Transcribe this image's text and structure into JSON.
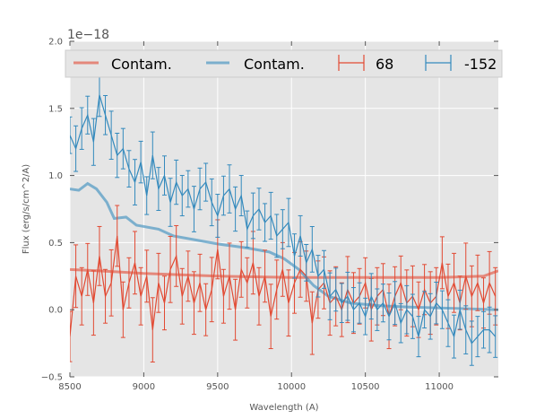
{
  "chart_data": {
    "type": "line",
    "xlabel": "Wavelength (A)",
    "ylabel": "Flux (erg/s/cm^2/A)",
    "offset_text": "1e−18",
    "xlim": [
      8500,
      11400
    ],
    "ylim": [
      -0.5,
      2.0
    ],
    "xticks": [
      8500,
      9000,
      9500,
      10000,
      10500,
      11000
    ],
    "xtick_labels": [
      "8500",
      "9000",
      "9500",
      "10000",
      "10500",
      "11000"
    ],
    "yticks": [
      -0.5,
      0.0,
      0.5,
      1.0,
      1.5,
      2.0
    ],
    "ytick_labels": [
      "−0.5",
      "0.0",
      "0.5",
      "1.0",
      "1.5",
      "2.0"
    ],
    "grid": true,
    "legend_position": "top",
    "colors": {
      "red": "#e24a33",
      "blue": "#348abd",
      "bg": "#e5e5e5"
    },
    "x_start": 8500,
    "x_step": 40,
    "series": [
      {
        "name": "68",
        "kind": "errorbar",
        "color": "#e24a33",
        "values": [
          -0.2,
          0.25,
          0.1,
          0.3,
          0.05,
          0.4,
          0.1,
          0.2,
          0.55,
          0.0,
          0.2,
          0.35,
          0.1,
          0.25,
          -0.15,
          0.2,
          0.05,
          0.3,
          0.4,
          0.1,
          0.25,
          0.05,
          0.2,
          0.0,
          0.15,
          0.45,
          0.1,
          0.25,
          0.0,
          0.3,
          0.2,
          0.35,
          0.1,
          0.25,
          -0.05,
          0.15,
          0.3,
          0.05,
          0.2,
          0.3,
          0.25,
          -0.1,
          0.15,
          0.2,
          0.05,
          0.1,
          0.0,
          0.15,
          0.05,
          0.1,
          0.2,
          0.0,
          0.1,
          0.15,
          -0.05,
          0.1,
          0.2,
          0.05,
          0.1,
          0.0,
          0.15,
          0.05,
          0.1,
          0.35,
          0.1,
          0.2,
          0.05,
          0.25,
          0.1,
          0.2,
          0.05,
          0.2,
          0.1
        ],
        "yerr": 0.22
      },
      {
        "name": "-152",
        "kind": "errorbar",
        "color": "#348abd",
        "values": [
          1.3,
          1.2,
          1.35,
          1.45,
          1.25,
          1.6,
          1.45,
          1.3,
          1.15,
          1.2,
          1.05,
          0.95,
          1.1,
          0.85,
          1.15,
          0.9,
          1.0,
          0.8,
          0.95,
          0.85,
          0.9,
          0.75,
          0.9,
          0.95,
          0.8,
          0.7,
          0.85,
          0.9,
          0.75,
          0.85,
          0.6,
          0.7,
          0.75,
          0.65,
          0.7,
          0.55,
          0.6,
          0.65,
          0.4,
          0.55,
          0.35,
          0.45,
          0.25,
          0.3,
          0.1,
          0.15,
          0.05,
          0.1,
          0.0,
          0.05,
          -0.05,
          0.1,
          0.0,
          0.05,
          -0.05,
          0.05,
          -0.1,
          0.0,
          -0.05,
          -0.2,
          0.0,
          -0.05,
          0.05,
          0.0,
          -0.1,
          -0.2,
          0.0,
          -0.15,
          -0.25,
          -0.2,
          -0.15,
          -0.15,
          -0.2
        ],
        "yerr": 0.16
      },
      {
        "name": "Contam.",
        "kind": "line",
        "color": "#e24a33",
        "x": [
          8500,
          8700,
          9000,
          9500,
          10000,
          10500,
          11000,
          11300,
          11400
        ],
        "values": [
          0.3,
          0.29,
          0.27,
          0.25,
          0.24,
          0.24,
          0.24,
          0.25,
          0.29
        ]
      },
      {
        "name": "Contam.",
        "kind": "line",
        "color": "#348abd",
        "x": [
          8500,
          8560,
          8620,
          8680,
          8750,
          8800,
          8880,
          8950,
          9000,
          9100,
          9200,
          9350,
          9500,
          9700,
          9850,
          9950,
          10050,
          10150,
          10250,
          10400,
          10600,
          10800,
          11100,
          11400
        ],
        "values": [
          0.9,
          0.89,
          0.94,
          0.9,
          0.8,
          0.68,
          0.69,
          0.63,
          0.62,
          0.6,
          0.55,
          0.52,
          0.49,
          0.46,
          0.43,
          0.38,
          0.3,
          0.18,
          0.1,
          0.05,
          0.03,
          0.02,
          0.01,
          0.0
        ]
      }
    ],
    "legend": [
      "Contam.",
      "Contam.",
      "68",
      "-152"
    ]
  }
}
